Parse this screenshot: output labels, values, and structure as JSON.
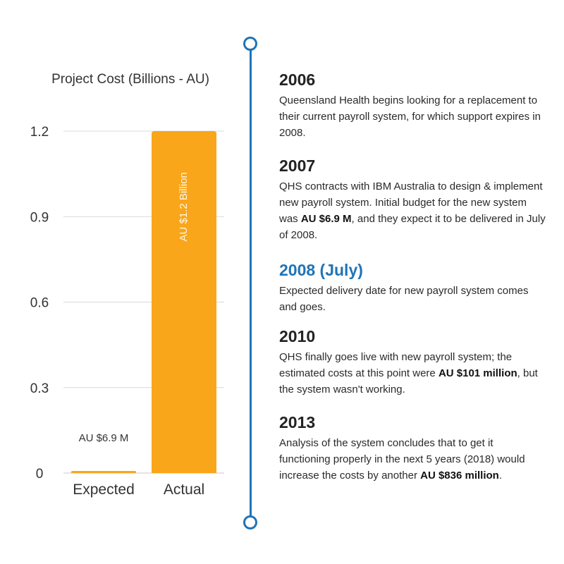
{
  "chart_data": {
    "type": "bar",
    "title": "Project Cost (Billions - AU)",
    "categories": [
      "Expected",
      "Actual"
    ],
    "values": [
      0.0069,
      1.2
    ],
    "bar_labels": [
      "AU $6.9 M",
      "AU $1.2 Billion"
    ],
    "yticks": [
      0,
      0.3,
      0.6,
      0.9,
      1.2
    ],
    "ytick_labels": [
      "0",
      "0.3",
      "0.6",
      "0.9",
      "1.2"
    ],
    "ylim": [
      0,
      1.2
    ],
    "xlabel": "",
    "ylabel": "",
    "grid": true,
    "bar_color": "#f9a61a"
  },
  "colors": {
    "accent": "#1f74b7",
    "bar": "#f9a61a",
    "grid": "#d9d9d9"
  },
  "timeline": {
    "entries": [
      {
        "year": "2006",
        "highlight": false,
        "parts": [
          {
            "text": "Queensland Health begins looking for a replacement to their current payroll system, for which support expires in 2008.",
            "bold": false
          }
        ]
      },
      {
        "year": "2007",
        "highlight": false,
        "parts": [
          {
            "text": "QHS contracts with IBM Australia to design & implement new payroll system. Initial budget for the new system was ",
            "bold": false
          },
          {
            "text": "AU $6.9 M",
            "bold": true
          },
          {
            "text": ", and they expect it to be delivered in July of 2008.",
            "bold": false
          }
        ]
      },
      {
        "year": "2008 (July)",
        "highlight": true,
        "parts": [
          {
            "text": "Expected delivery date for new payroll system comes and goes.",
            "bold": false
          }
        ]
      },
      {
        "year": "2010",
        "highlight": false,
        "parts": [
          {
            "text": "QHS finally goes live with new payroll system; the estimated costs at this point were ",
            "bold": false
          },
          {
            "text": "AU $101 million",
            "bold": true
          },
          {
            "text": ", but the system wasn't working.",
            "bold": false
          }
        ]
      },
      {
        "year": "2013",
        "highlight": false,
        "parts": [
          {
            "text": "Analysis of the system concludes that to get it functioning properly in the next 5 years (2018) would increase the costs by another ",
            "bold": false
          },
          {
            "text": "AU $836 million",
            "bold": true
          },
          {
            "text": ".",
            "bold": false
          }
        ]
      }
    ]
  }
}
